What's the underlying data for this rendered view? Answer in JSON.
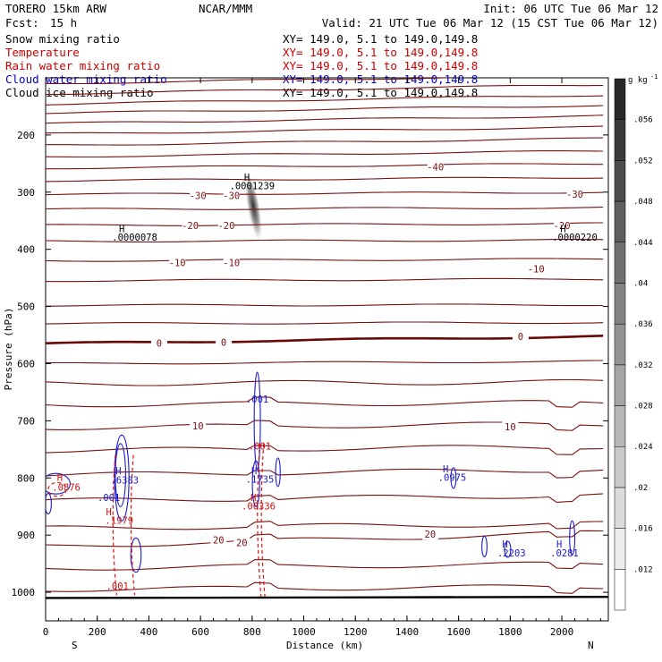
{
  "header": {
    "model": "TORERO   15km ARW",
    "center": "NCAR/MMM",
    "init": "Init: 06 UTC Tue 06 Mar 12",
    "fcst_label": "Fcst:",
    "fcst_value": "15 h",
    "valid": "Valid: 21 UTC Tue 06 Mar 12 (15 CST Tue 06 Mar 12)"
  },
  "fields": [
    {
      "name": "Snow mixing ratio",
      "xy": "XY= 149.0,  5.1 to 149.0,149.8",
      "color": "#000000"
    },
    {
      "name": "Temperature",
      "xy": "XY= 149.0,  5.1 to 149.0,149.8",
      "color": "#cc0000"
    },
    {
      "name": "Rain water mixing ratio",
      "xy": "XY= 149.0,  5.1 to 149.0,149.8",
      "color": "#cc0000"
    },
    {
      "name": "Cloud water mixing ratio",
      "xy": "XY= 149.0,  5.1 to 149.0,149.8",
      "color": "#0000cc"
    },
    {
      "name": "Cloud ice mixing ratio",
      "xy": "XY= 149.0,  5.1 to 149.0,149.8",
      "color": "#000000"
    }
  ],
  "colors": {
    "temperature": "#7a1010",
    "freezing": "#6a0808",
    "cloud_water": "#1a1acc",
    "rain": "#dd1111",
    "snow": "#333333"
  },
  "chart_data": {
    "type": "cross-section",
    "xlabel": "Distance (km)",
    "ylabel": "Pressure (hPa)",
    "xlim": [
      0,
      2180
    ],
    "ylim": [
      1050,
      100
    ],
    "x_ticks": [
      0,
      200,
      400,
      600,
      800,
      1000,
      1200,
      1400,
      1600,
      1800,
      2000
    ],
    "y_ticks": [
      200,
      300,
      400,
      500,
      600,
      700,
      800,
      900,
      1000
    ],
    "left_end_label": "S",
    "right_end_label": "N",
    "colorbar": {
      "unit": "g kg",
      "unit_exp": "-1",
      "ticks": [
        ".012",
        ".016",
        ".02",
        ".024",
        ".028",
        ".032",
        ".036",
        ".04",
        ".044",
        ".048",
        ".052",
        ".056"
      ]
    },
    "temperature_isotherms": [
      {
        "p_left": 110,
        "p_right": 95,
        "label": ""
      },
      {
        "p_left": 128,
        "p_right": 112,
        "label": ""
      },
      {
        "p_left": 146,
        "p_right": 130,
        "label": ""
      },
      {
        "p_left": 162,
        "p_right": 148,
        "label": ""
      },
      {
        "p_left": 180,
        "p_right": 166,
        "label": ""
      },
      {
        "p_left": 198,
        "p_right": 186,
        "label": ""
      },
      {
        "p_left": 218,
        "p_right": 206,
        "label": ""
      },
      {
        "p_left": 238,
        "p_right": 228,
        "label": ""
      },
      {
        "p_left": 258,
        "p_right": 250,
        "label": "-40"
      },
      {
        "p_left": 280,
        "p_right": 274,
        "label": ""
      },
      {
        "p_left": 304,
        "p_right": 300,
        "label": "-30"
      },
      {
        "p_left": 330,
        "p_right": 327,
        "label": ""
      },
      {
        "p_left": 358,
        "p_right": 355,
        "label": "-20"
      },
      {
        "p_left": 386,
        "p_right": 384,
        "label": ""
      },
      {
        "p_left": 420,
        "p_right": 417,
        "label": "-10"
      },
      {
        "p_left": 455,
        "p_right": 452,
        "label": ""
      },
      {
        "p_left": 498,
        "p_right": 497,
        "label": ""
      },
      {
        "p_left": 530,
        "p_right": 528,
        "label": ""
      },
      {
        "p_left": 565,
        "p_right": 552,
        "label": "0",
        "freezing": true
      },
      {
        "p_left": 600,
        "p_right": 596,
        "label": ""
      },
      {
        "p_left": 635,
        "p_right": 632,
        "label": ""
      },
      {
        "p_left": 672,
        "p_right": 668,
        "label": ""
      },
      {
        "p_left": 712,
        "p_right": 705,
        "label": "10"
      },
      {
        "p_left": 752,
        "p_right": 745,
        "label": ""
      },
      {
        "p_left": 795,
        "p_right": 785,
        "label": ""
      },
      {
        "p_left": 840,
        "p_right": 830,
        "label": ""
      },
      {
        "p_left": 888,
        "p_right": 880,
        "label": ""
      },
      {
        "p_left": 920,
        "p_right": 895,
        "label": "20"
      },
      {
        "p_left": 958,
        "p_right": 950,
        "label": ""
      },
      {
        "p_left": 995,
        "p_right": 990,
        "label": ""
      }
    ],
    "temperature_labels": [
      {
        "text": "-40",
        "x": 1510,
        "p": 257
      },
      {
        "text": "-30",
        "x": 590,
        "p": 307
      },
      {
        "text": "-30",
        "x": 720,
        "p": 307
      },
      {
        "text": "-30",
        "x": 2050,
        "p": 305
      },
      {
        "text": "-20",
        "x": 560,
        "p": 360
      },
      {
        "text": "-20",
        "x": 700,
        "p": 360
      },
      {
        "text": "-20",
        "x": 2000,
        "p": 360
      },
      {
        "text": "-10",
        "x": 510,
        "p": 425
      },
      {
        "text": "-10",
        "x": 720,
        "p": 425
      },
      {
        "text": "-10",
        "x": 1900,
        "p": 436
      },
      {
        "text": "0",
        "x": 440,
        "p": 566
      },
      {
        "text": "0",
        "x": 690,
        "p": 564
      },
      {
        "text": "0",
        "x": 1840,
        "p": 554
      },
      {
        "text": "10",
        "x": 590,
        "p": 710
      },
      {
        "text": "10",
        "x": 1800,
        "p": 712
      },
      {
        "text": "20",
        "x": 670,
        "p": 910
      },
      {
        "text": "20",
        "x": 760,
        "p": 915
      },
      {
        "text": "20",
        "x": 1490,
        "p": 900
      }
    ],
    "extrema_labels": [
      {
        "text": "H",
        "x": 780,
        "p": 280,
        "color": "#000000"
      },
      {
        "text": ".0001239",
        "x": 800,
        "p": 295,
        "color": "#000000"
      },
      {
        "text": "H",
        "x": 295,
        "p": 370,
        "color": "#000000"
      },
      {
        "text": ".0000078",
        "x": 345,
        "p": 385,
        "color": "#000000"
      },
      {
        "text": "H",
        "x": 2005,
        "p": 370,
        "color": "#000000"
      },
      {
        "text": ".0000220",
        "x": 2050,
        "p": 385,
        "color": "#000000"
      },
      {
        "text": "H",
        "x": 282,
        "p": 793,
        "color": "#1a1acc"
      },
      {
        "text": ".6383",
        "x": 306,
        "p": 810,
        "color": "#1a1acc"
      },
      {
        "text": "H",
        "x": 55,
        "p": 805,
        "color": "#cc1111"
      },
      {
        "text": ".0876",
        "x": 80,
        "p": 822,
        "color": "#cc1111"
      },
      {
        "text": ".001",
        "x": 245,
        "p": 840,
        "color": "#1a1acc"
      },
      {
        "text": "H",
        "x": 245,
        "p": 865,
        "color": "#cc1111"
      },
      {
        "text": ".1979",
        "x": 285,
        "p": 880,
        "color": "#cc1111"
      },
      {
        "text": ".001",
        "x": 278,
        "p": 995,
        "color": "#cc1111"
      },
      {
        "text": ".001",
        "x": 820,
        "p": 668,
        "color": "#1a1acc"
      },
      {
        "text": ".001",
        "x": 830,
        "p": 750,
        "color": "#cc1111"
      },
      {
        "text": "H",
        "x": 808,
        "p": 793,
        "color": "#1a1acc"
      },
      {
        "text": ".1735",
        "x": 830,
        "p": 808,
        "color": "#1a1acc"
      },
      {
        "text": "H",
        "x": 805,
        "p": 840,
        "color": "#cc1111"
      },
      {
        "text": ".00336",
        "x": 825,
        "p": 855,
        "color": "#cc1111"
      },
      {
        "text": "H",
        "x": 1550,
        "p": 790,
        "color": "#1a1acc"
      },
      {
        "text": ".0975",
        "x": 1575,
        "p": 805,
        "color": "#1a1acc"
      },
      {
        "text": "H",
        "x": 1780,
        "p": 922,
        "color": "#1a1acc"
      },
      {
        "text": ".2203",
        "x": 1805,
        "p": 937,
        "color": "#1a1acc"
      },
      {
        "text": "H",
        "x": 1990,
        "p": 922,
        "color": "#1a1acc"
      },
      {
        "text": ".0281",
        "x": 2010,
        "p": 937,
        "color": "#1a1acc"
      }
    ],
    "snow_maximum": {
      "x": 805,
      "p_top": 265,
      "p_bottom": 385,
      "value": 0.0001239
    }
  }
}
